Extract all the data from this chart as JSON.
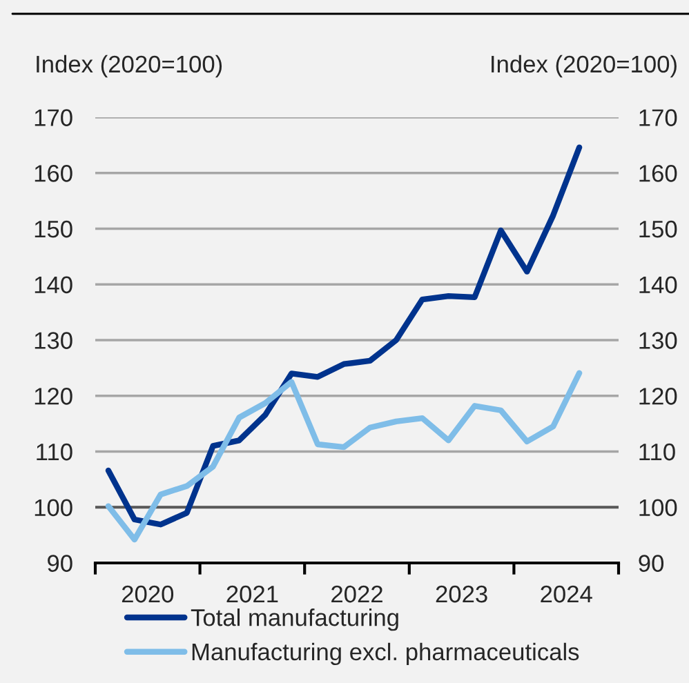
{
  "chart_data": {
    "type": "line",
    "ylabel": "Index (2020=100)",
    "y2label": "Index (2020=100)",
    "x": [
      2020.125,
      2020.375,
      2020.625,
      2020.875,
      2021.125,
      2021.375,
      2021.625,
      2021.875,
      2022.125,
      2022.375,
      2022.625,
      2022.875,
      2023.125,
      2023.375,
      2023.625,
      2023.875,
      2024.125,
      2024.375,
      2024.625
    ],
    "series": [
      {
        "name": "Total manufacturing",
        "color": "#00338d",
        "values": [
          106.6,
          97.8,
          96.9,
          99.0,
          111.0,
          112.0,
          116.6,
          124.0,
          123.4,
          125.7,
          126.3,
          130.0,
          137.3,
          137.9,
          137.7,
          149.7,
          142.3,
          152.4,
          164.6
        ]
      },
      {
        "name": "Manufacturing excl. pharmaceuticals",
        "color": "#7fbde8",
        "values": [
          100.2,
          94.2,
          102.3,
          103.8,
          107.3,
          116.1,
          118.7,
          122.5,
          111.3,
          110.8,
          114.3,
          115.4,
          116.0,
          112.0,
          118.2,
          117.4,
          111.8,
          114.5,
          124.1
        ]
      }
    ],
    "xlim": [
      2020,
      2025
    ],
    "xticks": [
      {
        "value": 2020,
        "label": null
      },
      {
        "value": 2020.5,
        "label": "2020"
      },
      {
        "value": 2021,
        "label": null
      },
      {
        "value": 2021.5,
        "label": "2021"
      },
      {
        "value": 2022,
        "label": null
      },
      {
        "value": 2022.5,
        "label": "2022"
      },
      {
        "value": 2023,
        "label": null
      },
      {
        "value": 2023.5,
        "label": "2023"
      },
      {
        "value": 2024,
        "label": null
      },
      {
        "value": 2024.5,
        "label": "2024"
      },
      {
        "value": 2025,
        "label": null
      }
    ],
    "ylim": [
      90,
      170
    ],
    "yticks": [
      90,
      100,
      110,
      120,
      130,
      140,
      150,
      160,
      170
    ],
    "y2lim": [
      90,
      170
    ],
    "y2ticks": [
      90,
      100,
      110,
      120,
      130,
      140,
      150,
      160,
      170
    ],
    "ref_lines": [
      {
        "axis": "y",
        "value": 100,
        "color": "#595959"
      }
    ],
    "grid": "y",
    "legend": "bottom",
    "line_style": "solid"
  }
}
